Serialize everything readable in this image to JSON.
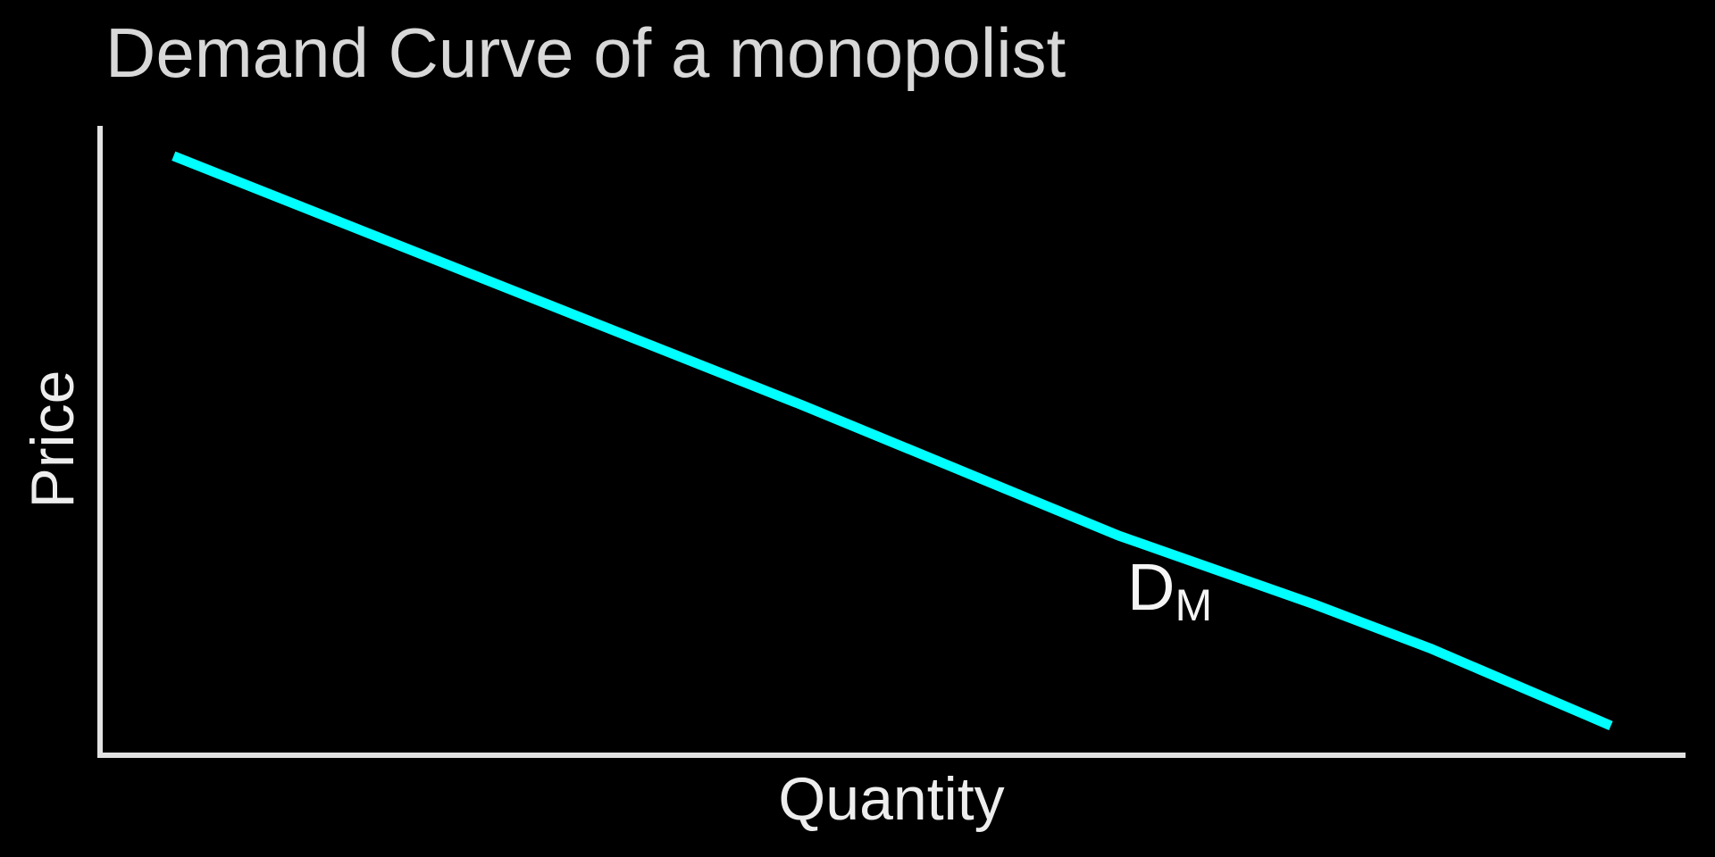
{
  "chart_data": {
    "type": "line",
    "title": "Demand Curve of a monopolist",
    "xlabel": "Quantity",
    "ylabel": "Price",
    "background_color": "#000000",
    "axis_color": "#e2e2e2",
    "title_color": "#d8d8d8",
    "axis_label_color": "#ededed",
    "grid": false,
    "axis_ticks": "none",
    "tick_labels": "none",
    "legend_position": "none",
    "x_range_fraction": [
      0,
      1
    ],
    "y_range_fraction": [
      0,
      1
    ],
    "series": [
      {
        "name": "monopolist-demand-curve",
        "label_main": "D",
        "label_subscript": "M",
        "label_color": "#f5f5f5",
        "color": "#00ffff",
        "line_width": 11,
        "trend": "downward-sloping straight line from high price / low quantity to low price / high quantity",
        "x_fraction": [
          0.048,
          0.445,
          0.643,
          0.766,
          0.839,
          0.953
        ],
        "y_fraction": [
          0.952,
          0.555,
          0.349,
          0.24,
          0.17,
          0.047
        ]
      }
    ]
  }
}
